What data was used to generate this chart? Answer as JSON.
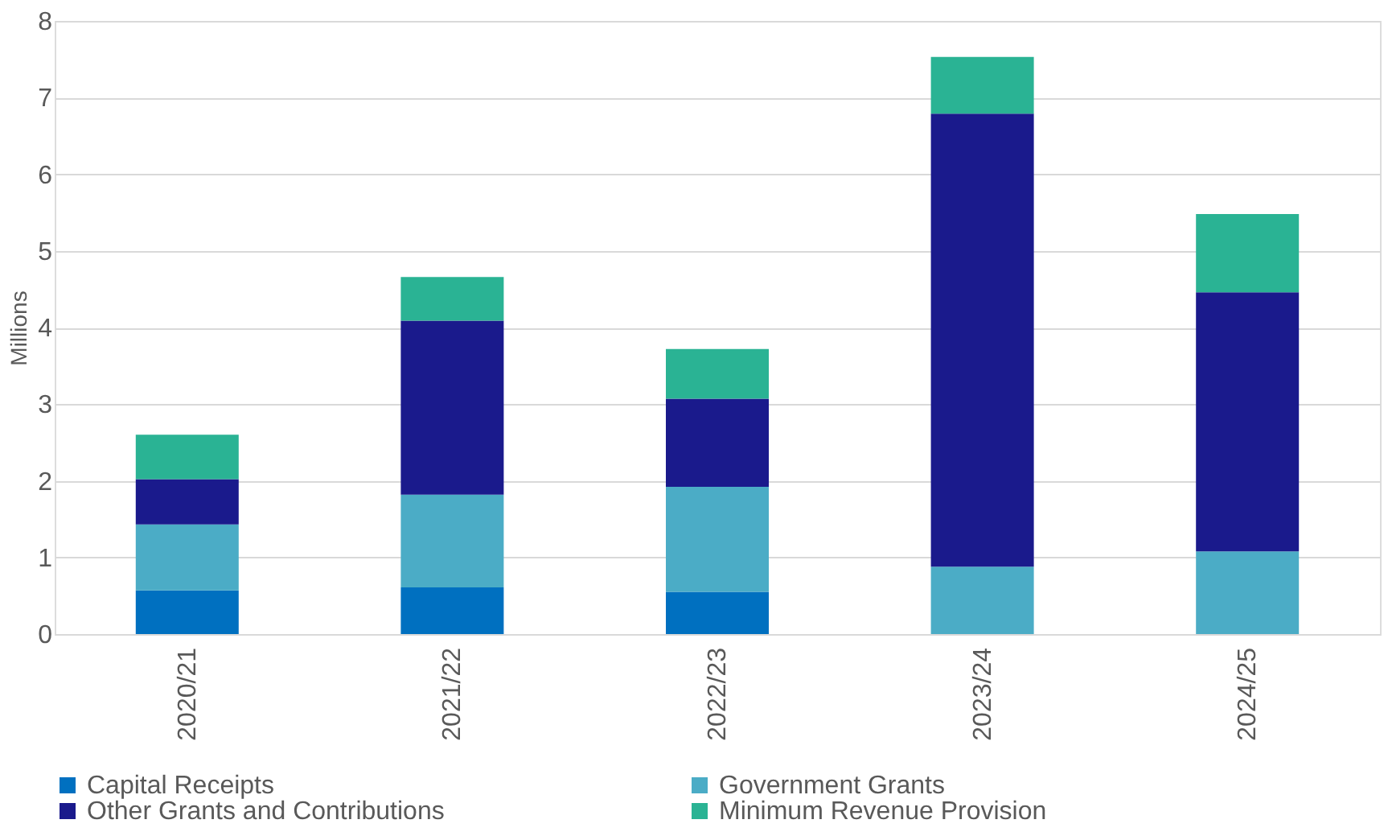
{
  "chart_data": {
    "type": "bar",
    "stacked": true,
    "ylabel": "Millions",
    "categories": [
      "2020/21",
      "2021/22",
      "2022/23",
      "2023/24",
      "2024/25"
    ],
    "series": [
      {
        "name": "Capital Receipts",
        "color": "#0070c0",
        "values": [
          0.57,
          0.61,
          0.55,
          0,
          0
        ]
      },
      {
        "name": "Government Grants",
        "color": "#4bacc6",
        "values": [
          0.86,
          1.21,
          1.37,
          0.88,
          1.08
        ]
      },
      {
        "name": "Other Grants and Contributions",
        "color": "#1a1a8c",
        "values": [
          0.59,
          2.27,
          1.15,
          5.91,
          3.38
        ]
      },
      {
        "name": "Minimum Revenue Provision",
        "color": "#2ab394",
        "values": [
          0.58,
          0.57,
          0.65,
          0.74,
          1.02
        ]
      }
    ],
    "ylim": [
      0,
      8
    ],
    "yticks": [
      0,
      1,
      2,
      3,
      4,
      5,
      6,
      7,
      8
    ],
    "grid": "y",
    "legend": "bottom"
  }
}
